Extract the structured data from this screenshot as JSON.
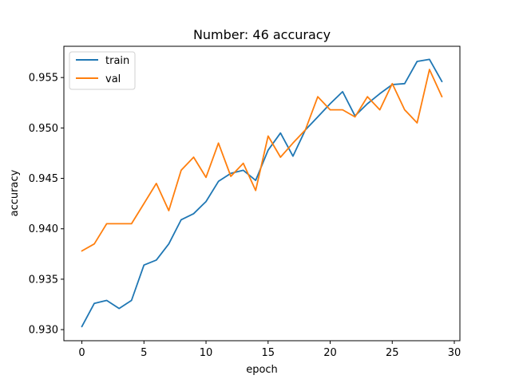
{
  "chart_data": {
    "type": "line",
    "title": "Number: 46 accuracy",
    "xlabel": "epoch",
    "ylabel": "accuracy",
    "xlim": [
      -1.45,
      30.45
    ],
    "ylim": [
      0.9289,
      0.9581
    ],
    "x_ticks": [
      0,
      5,
      10,
      15,
      20,
      25,
      30
    ],
    "x_tick_labels": [
      "0",
      "5",
      "10",
      "15",
      "20",
      "25",
      "30"
    ],
    "y_ticks": [
      0.93,
      0.935,
      0.94,
      0.945,
      0.95,
      0.955
    ],
    "y_tick_labels": [
      "0.930",
      "0.935",
      "0.940",
      "0.945",
      "0.950",
      "0.955"
    ],
    "grid": false,
    "legend_position": "upper-left",
    "x": [
      0,
      1,
      2,
      3,
      4,
      5,
      6,
      7,
      8,
      9,
      10,
      11,
      12,
      13,
      14,
      15,
      16,
      17,
      18,
      19,
      20,
      21,
      22,
      23,
      24,
      25,
      26,
      27,
      28,
      29
    ],
    "series": [
      {
        "name": "train",
        "color": "#1f77b4",
        "values": [
          0.9303,
          0.9326,
          0.9329,
          0.9321,
          0.9329,
          0.9364,
          0.9369,
          0.9385,
          0.9409,
          0.9415,
          0.9427,
          0.9447,
          0.9455,
          0.9458,
          0.9448,
          0.9478,
          0.9495,
          0.9472,
          0.9498,
          0.9511,
          0.9524,
          0.9536,
          0.9512,
          0.9524,
          0.9534,
          0.9543,
          0.9544,
          0.9566,
          0.9568,
          0.9546
        ]
      },
      {
        "name": "val",
        "color": "#ff7f0e",
        "values": [
          0.9378,
          0.9385,
          0.9405,
          0.9405,
          0.9405,
          0.9425,
          0.9445,
          0.9418,
          0.9458,
          0.9471,
          0.9451,
          0.9485,
          0.9452,
          0.9465,
          0.9438,
          0.9492,
          0.9471,
          0.9485,
          0.9498,
          0.9531,
          0.9518,
          0.9518,
          0.9511,
          0.9531,
          0.9518,
          0.9544,
          0.9518,
          0.9505,
          0.9558,
          0.9531
        ]
      }
    ]
  }
}
